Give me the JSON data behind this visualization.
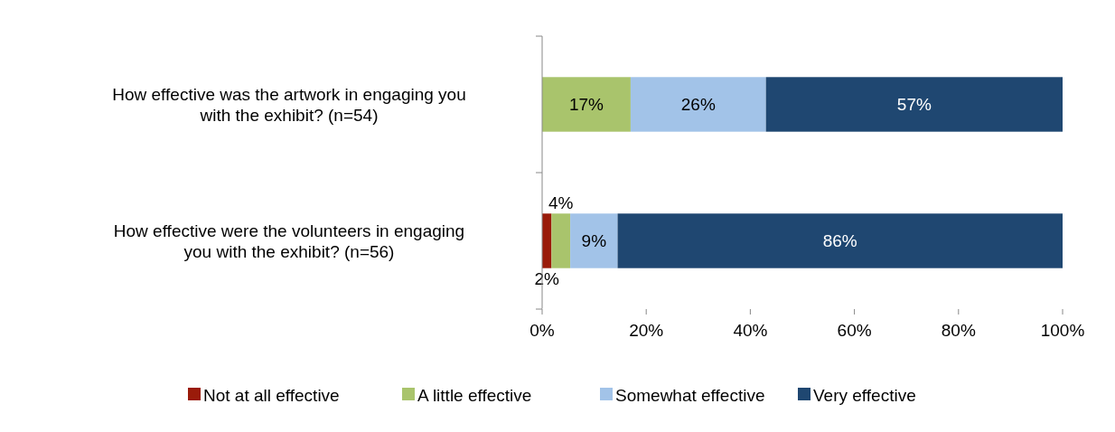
{
  "chart_data": {
    "type": "bar",
    "orientation": "horizontal",
    "stacked": true,
    "categories": [
      "How effective was the artwork in engaging you with the exhibit? (n=54)",
      "How effective were the volunteers in engaging you with the exhibit? (n=56)"
    ],
    "series": [
      {
        "name": "Not at all effective",
        "color": "#9a1b0a",
        "values": [
          0,
          1.8
        ],
        "value_labels": [
          null,
          "2%"
        ]
      },
      {
        "name": "A little effective",
        "color": "#a9c46c",
        "values": [
          17,
          3.6
        ],
        "value_labels": [
          "17%",
          "4%"
        ]
      },
      {
        "name": "Somewhat effective",
        "color": "#a2c3e8",
        "values": [
          26,
          9.1
        ],
        "value_labels": [
          "26%",
          "9%"
        ]
      },
      {
        "name": "Very effective",
        "color": "#1f4771",
        "values": [
          57,
          85.5
        ],
        "value_labels": [
          "57%",
          "86%"
        ]
      }
    ],
    "xlim": [
      0,
      100
    ],
    "xticks": [
      {
        "value": 0,
        "label": "0%"
      },
      {
        "value": 20,
        "label": "20%"
      },
      {
        "value": 40,
        "label": "40%"
      },
      {
        "value": 60,
        "label": "60%"
      },
      {
        "value": 80,
        "label": "80%"
      },
      {
        "value": 100,
        "label": "100%"
      }
    ],
    "legend": "bottom"
  }
}
